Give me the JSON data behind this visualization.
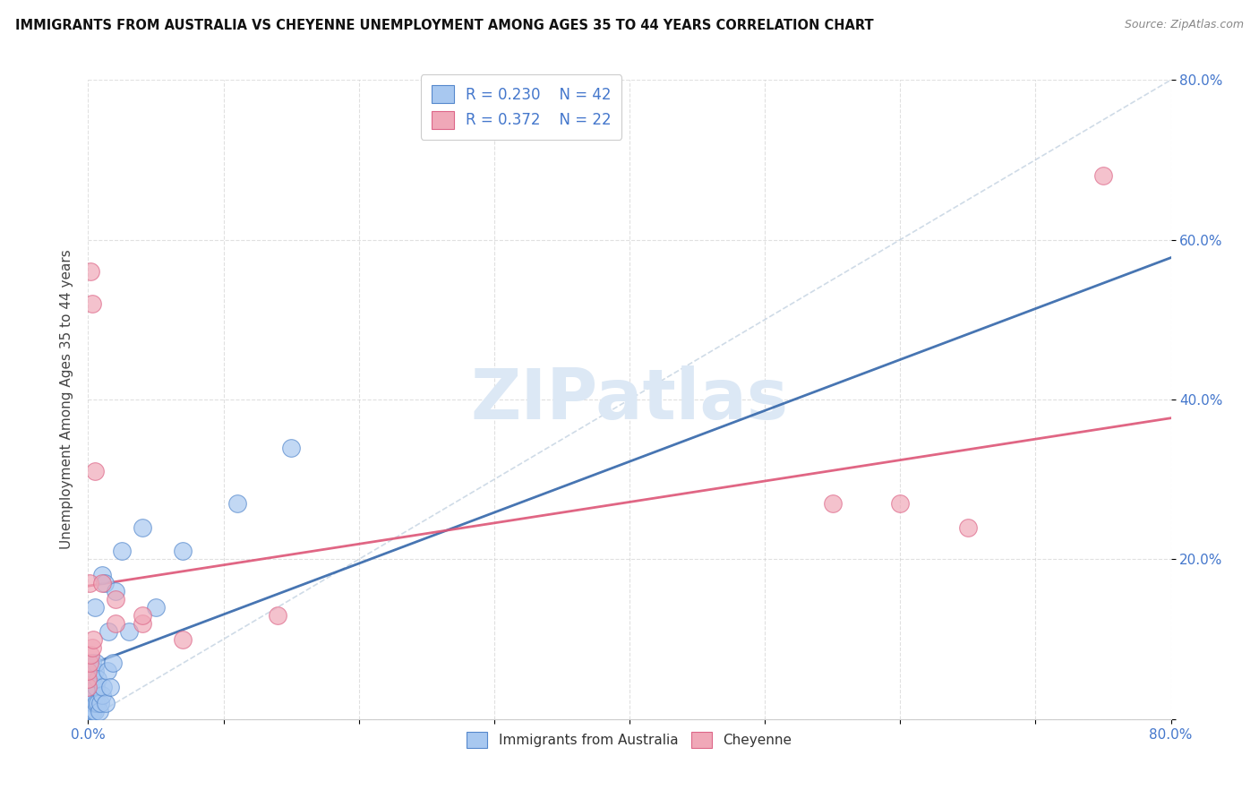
{
  "title": "IMMIGRANTS FROM AUSTRALIA VS CHEYENNE UNEMPLOYMENT AMONG AGES 35 TO 44 YEARS CORRELATION CHART",
  "source": "Source: ZipAtlas.com",
  "ylabel": "Unemployment Among Ages 35 to 44 years",
  "xlim": [
    0,
    0.8
  ],
  "ylim": [
    0,
    0.8
  ],
  "blue_R": 0.23,
  "blue_N": 42,
  "pink_R": 0.372,
  "pink_N": 22,
  "blue_color": "#a8c8f0",
  "pink_color": "#f0a8b8",
  "blue_edge_color": "#5588cc",
  "pink_edge_color": "#dd6688",
  "trend_blue_color": "#3366aa",
  "trend_pink_color": "#dd5577",
  "ref_line_color": "#aabbcc",
  "background_color": "#ffffff",
  "grid_color": "#cccccc",
  "label_color": "#4477cc",
  "blue_scatter_x": [
    0.0005,
    0.001,
    0.001,
    0.0015,
    0.002,
    0.002,
    0.002,
    0.003,
    0.003,
    0.003,
    0.003,
    0.004,
    0.004,
    0.004,
    0.005,
    0.005,
    0.005,
    0.005,
    0.006,
    0.006,
    0.006,
    0.007,
    0.007,
    0.008,
    0.009,
    0.01,
    0.01,
    0.011,
    0.012,
    0.013,
    0.014,
    0.015,
    0.016,
    0.018,
    0.02,
    0.025,
    0.03,
    0.04,
    0.05,
    0.07,
    0.11,
    0.15
  ],
  "blue_scatter_y": [
    0.01,
    0.02,
    0.04,
    0.01,
    0.02,
    0.03,
    0.05,
    0.01,
    0.03,
    0.05,
    0.07,
    0.01,
    0.02,
    0.04,
    0.01,
    0.03,
    0.06,
    0.14,
    0.02,
    0.04,
    0.07,
    0.02,
    0.05,
    0.01,
    0.02,
    0.03,
    0.18,
    0.04,
    0.17,
    0.02,
    0.06,
    0.11,
    0.04,
    0.07,
    0.16,
    0.21,
    0.11,
    0.24,
    0.14,
    0.21,
    0.27,
    0.34
  ],
  "pink_scatter_x": [
    0.001,
    0.002,
    0.003,
    0.005,
    0.01,
    0.02,
    0.04,
    0.07,
    0.14,
    0.55,
    0.6,
    0.65,
    0.75,
    0.0,
    0.0,
    0.0,
    0.001,
    0.002,
    0.003,
    0.004,
    0.02,
    0.04
  ],
  "pink_scatter_y": [
    0.17,
    0.56,
    0.52,
    0.31,
    0.17,
    0.15,
    0.12,
    0.1,
    0.13,
    0.27,
    0.27,
    0.24,
    0.68,
    0.04,
    0.05,
    0.06,
    0.07,
    0.08,
    0.09,
    0.1,
    0.12,
    0.13
  ],
  "watermark_text": "ZIPatlas",
  "watermark_color": "#dce8f5"
}
